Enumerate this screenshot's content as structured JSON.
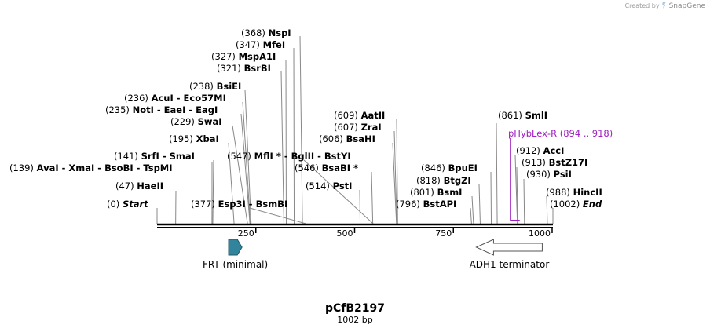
{
  "credit": {
    "prefix": "Created by",
    "brand": "SnapGene"
  },
  "map": {
    "name": "pCfB2197",
    "length_label": "1002 bp",
    "length": 1002,
    "ticks": [
      {
        "pos": 250,
        "label": "250"
      },
      {
        "pos": 500,
        "label": "500"
      },
      {
        "pos": 750,
        "label": "750"
      },
      {
        "pos": 1000,
        "label": "1000"
      }
    ]
  },
  "sites": [
    {
      "pos": 0,
      "num": "(0)",
      "name": "Start",
      "italic": true
    },
    {
      "pos": 47,
      "num": "(47)",
      "name": "HaeII"
    },
    {
      "pos": 139,
      "num": "(139)",
      "name": "AvaI - XmaI - BsoBI - TspMI"
    },
    {
      "pos": 141,
      "num": "(141)",
      "name": "SrfI - SmaI"
    },
    {
      "pos": 195,
      "num": "(195)",
      "name": "XbaI"
    },
    {
      "pos": 229,
      "num": "(229)",
      "name": "SwaI"
    },
    {
      "pos": 235,
      "num": "(235)",
      "name": "NotI - EaeI - EagI"
    },
    {
      "pos": 236,
      "num": "(236)",
      "name": "AcuI - Eco57MI"
    },
    {
      "pos": 238,
      "num": "(238)",
      "name": "BsiEI"
    },
    {
      "pos": 321,
      "num": "(321)",
      "name": "BsrBI"
    },
    {
      "pos": 327,
      "num": "(327)",
      "name": "MspA1I"
    },
    {
      "pos": 347,
      "num": "(347)",
      "name": "MfeI"
    },
    {
      "pos": 368,
      "num": "(368)",
      "name": "NspI"
    },
    {
      "pos": 377,
      "num": "(377)",
      "name": "Esp3I - BsmBI"
    },
    {
      "pos": 547,
      "num": "(547)",
      "name": "MflI * - BglII - BstYI"
    },
    {
      "pos": 546,
      "num": "(546)",
      "name": "BsaBI *"
    },
    {
      "pos": 514,
      "num": "(514)",
      "name": "PstI"
    },
    {
      "pos": 606,
      "num": "(606)",
      "name": "BsaHI"
    },
    {
      "pos": 607,
      "num": "(607)",
      "name": "ZraI"
    },
    {
      "pos": 609,
      "num": "(609)",
      "name": "AatII"
    },
    {
      "pos": 796,
      "num": "(796)",
      "name": "BstAPI"
    },
    {
      "pos": 801,
      "num": "(801)",
      "name": "BsmI"
    },
    {
      "pos": 818,
      "num": "(818)",
      "name": "BtgZI"
    },
    {
      "pos": 846,
      "num": "(846)",
      "name": "BpuEI"
    },
    {
      "pos": 861,
      "num": "(861)",
      "name": "SmlI"
    },
    {
      "pos": 912,
      "num": "(912)",
      "name": "AccI"
    },
    {
      "pos": 913,
      "num": "(913)",
      "name": "BstZ17I"
    },
    {
      "pos": 930,
      "num": "(930)",
      "name": "PsiI"
    },
    {
      "pos": 988,
      "num": "(988)",
      "name": "HincII"
    },
    {
      "pos": 1002,
      "num": "(1002)",
      "name": "End",
      "italic": true
    }
  ],
  "primer": {
    "name": "pHybLex-R",
    "range": "(894 .. 918)",
    "start": 894,
    "end": 918,
    "color": "#a020c0"
  },
  "features": [
    {
      "name": "FRT (minimal)",
      "start": 181,
      "end": 215,
      "direction": "forward",
      "color": "#31849b"
    },
    {
      "name": "ADH1 terminator",
      "start": 808,
      "end": 975,
      "direction": "reverse",
      "color": "#ffffff"
    }
  ]
}
